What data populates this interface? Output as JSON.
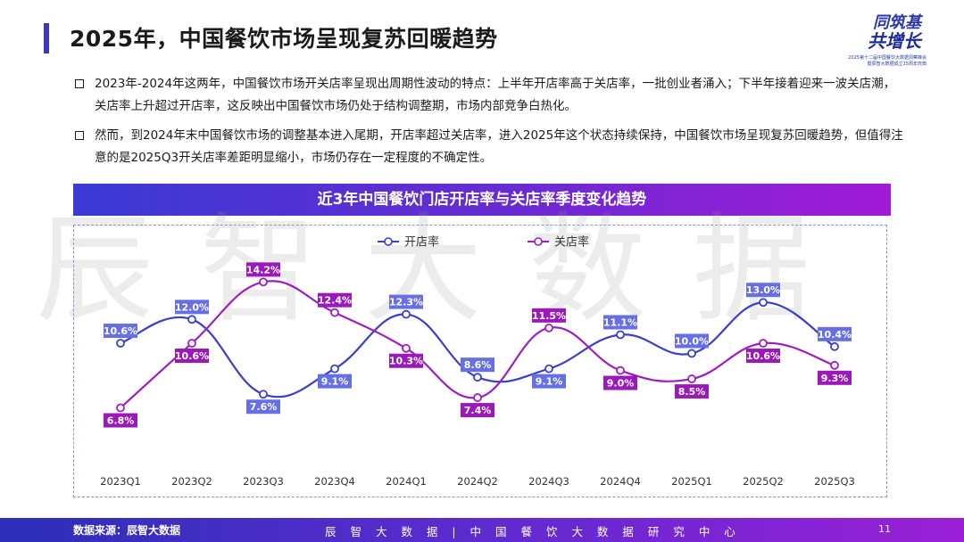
{
  "header": {
    "title": "2025年，中国餐饮市场呈现复苏回暖趋势"
  },
  "logo": {
    "line1": "同筑基",
    "line2": "共增长",
    "sub1": "2025第十二届中国餐饮大数据洞察峰会",
    "sub2": "暨辰智大数据成立15周年庆典"
  },
  "bullets": [
    "2023年-2024年这两年，中国餐饮市场开关店率呈现出周期性波动的特点：上半年开店率高于关店率，一批创业者涌入；下半年接着迎来一波关店潮，关店率上升超过开店率，这反映出中国餐饮市场仍处于结构调整期，市场内部竞争白热化。",
    "然而，到2024年末中国餐饮市场的调整基本进入尾期，开店率超过关店率，进入2025年这个状态持续保持，中国餐饮市场呈现复苏回暖趋势，但值得注意的是2025Q3开关店率差距明显缩小，市场仍存在一定程度的不确定性。"
  ],
  "watermark": "辰智大数据",
  "footer": {
    "source": "数据来源：辰智大数据",
    "center": "辰 智 大 数 据 | 中 国 餐 饮 大 数 据 研 究 中 心",
    "page": "11"
  },
  "colors": {
    "open": "#3b3fc7",
    "open_label": "#6670e4",
    "close": "#9b1fbf",
    "close_label": "#9a1ab8",
    "accent": "#3b35c8"
  },
  "chart_data": {
    "type": "line",
    "title": "近3年中国餐饮门店开店率与关店率季度变化趋势",
    "categories": [
      "2023Q1",
      "2023Q2",
      "2023Q3",
      "2023Q4",
      "2024Q1",
      "2024Q2",
      "2024Q3",
      "2024Q4",
      "2025Q1",
      "2025Q2",
      "2025Q3"
    ],
    "series": [
      {
        "name": "开店率",
        "values": [
          10.6,
          12.0,
          7.6,
          9.1,
          12.3,
          8.6,
          9.1,
          11.1,
          10.0,
          13.0,
          10.4
        ],
        "labels": [
          "10.6%",
          "12.0%",
          "7.6%",
          "9.1%",
          "12.3%",
          "8.6%",
          "9.1%",
          "11.1%",
          "10.0%",
          "13.0%",
          "10.4%"
        ]
      },
      {
        "name": "关店率",
        "values": [
          6.8,
          10.6,
          14.2,
          12.4,
          10.3,
          7.4,
          11.5,
          9.0,
          8.5,
          10.6,
          9.3
        ],
        "labels": [
          "6.8%",
          "10.6%",
          "14.2%",
          "12.4%",
          "10.3%",
          "7.4%",
          "11.5%",
          "9.0%",
          "8.5%",
          "10.6%",
          "9.3%"
        ]
      }
    ],
    "ylim": [
      3,
      16
    ],
    "grid": false,
    "legend": "top-left",
    "smooth": true
  }
}
